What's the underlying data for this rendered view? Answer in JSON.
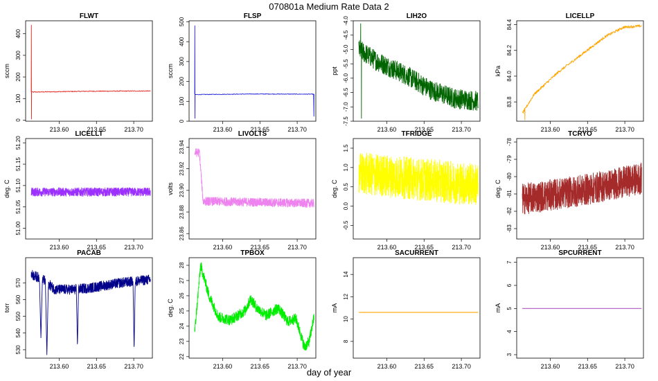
{
  "page": {
    "title": "070801a   Medium Rate Data 2",
    "xlabel": "day of year"
  },
  "chart_data": [
    {
      "type": "line",
      "title": "FLWT",
      "ylabel": "sccm",
      "color": "#e8251e",
      "xlim": [
        213.555,
        213.725
      ],
      "ylim": [
        -5,
        460
      ],
      "xticks": [
        "213.60",
        "213.65",
        "213.70"
      ],
      "xtick_values": [
        213.6,
        213.65,
        213.7
      ],
      "yticks": [
        "0",
        "100",
        "200",
        "300",
        "400"
      ],
      "ytick_values": [
        0,
        100,
        200,
        300,
        400
      ],
      "gen": {
        "x0": 213.5625,
        "x1": 213.7225,
        "n": 300,
        "base": 130,
        "noise": 2,
        "drift": [
          [
            0,
            130
          ],
          [
            0.5,
            134
          ],
          [
            1,
            135
          ]
        ],
        "spikes": [
          [
            213.5627,
            440
          ],
          [
            213.5629,
            5
          ]
        ]
      }
    },
    {
      "type": "line",
      "title": "FLSP",
      "ylabel": "sccm",
      "color": "#1c1cd8",
      "xlim": [
        213.555,
        213.725
      ],
      "ylim": [
        0,
        505
      ],
      "xticks": [
        "213.60",
        "213.65",
        "213.70"
      ],
      "xtick_values": [
        213.6,
        213.65,
        213.7
      ],
      "yticks": [
        "0",
        "100",
        "200",
        "300",
        "400",
        "500"
      ],
      "ytick_values": [
        0,
        100,
        200,
        300,
        400,
        500
      ],
      "gen": {
        "x0": 213.5625,
        "x1": 213.7225,
        "n": 300,
        "base": 135,
        "noise": 1.5,
        "drift": [
          [
            0,
            134
          ],
          [
            0.5,
            137
          ],
          [
            1,
            136
          ]
        ],
        "spikes": [
          [
            213.5627,
            480
          ],
          [
            213.5629,
            15
          ],
          [
            213.7224,
            25
          ]
        ]
      }
    },
    {
      "type": "line",
      "title": "LIH2O",
      "ylabel": "ppt",
      "color": "#006400",
      "xlim": [
        213.555,
        213.725
      ],
      "ylim": [
        -7.5,
        -4.0
      ],
      "xticks": [
        "213.60",
        "213.65",
        "213.70"
      ],
      "xtick_values": [
        213.6,
        213.65,
        213.7
      ],
      "yticks": [
        "-7.5",
        "-7.0",
        "-6.5",
        "-6.0",
        "-5.5",
        "-5.0",
        "-4.5",
        "-4.0"
      ],
      "ytick_values": [
        -7.5,
        -7.0,
        -6.5,
        -6.0,
        -5.5,
        -5.0,
        -4.5,
        -4.0
      ],
      "gen": {
        "x0": 213.5625,
        "x1": 213.7225,
        "n": 700,
        "base": -5.5,
        "noise": 0.35,
        "drift": [
          [
            0,
            -5.0
          ],
          [
            0.15,
            -5.4
          ],
          [
            0.4,
            -5.9
          ],
          [
            0.6,
            -6.4
          ],
          [
            0.8,
            -6.7
          ],
          [
            1,
            -6.8
          ]
        ],
        "spikes": [
          [
            213.565,
            -4.1
          ],
          [
            213.566,
            -7.4
          ]
        ]
      }
    },
    {
      "type": "line",
      "title": "LICELLP",
      "ylabel": "kPa",
      "color": "#ffa500",
      "xlim": [
        213.555,
        213.725
      ],
      "ylim": [
        83.65,
        84.43
      ],
      "xticks": [
        "213.60",
        "213.65",
        "213.70"
      ],
      "xtick_values": [
        213.6,
        213.65,
        213.7
      ],
      "yticks": [
        "83.8",
        "84.0",
        "84.2",
        "84.4"
      ],
      "ytick_values": [
        83.8,
        84.0,
        84.2,
        84.4
      ],
      "gen": {
        "x0": 213.5625,
        "x1": 213.7225,
        "n": 400,
        "base": 84.0,
        "noise": 0.01,
        "drift": [
          [
            0,
            83.71
          ],
          [
            0.1,
            83.86
          ],
          [
            0.3,
            84.03
          ],
          [
            0.5,
            84.17
          ],
          [
            0.7,
            84.31
          ],
          [
            0.85,
            84.38
          ],
          [
            1,
            84.39
          ]
        ],
        "spikes": [
          [
            213.566,
            83.66
          ]
        ]
      }
    },
    {
      "type": "line",
      "title": "LICELLT",
      "ylabel": "deg. C",
      "color": "#9b30ff",
      "xlim": [
        213.555,
        213.725
      ],
      "ylim": [
        50.975,
        51.21
      ],
      "xticks": [
        "213.60",
        "213.65",
        "213.70"
      ],
      "xtick_values": [
        213.6,
        213.65,
        213.7
      ],
      "yticks": [
        "51.00",
        "51.05",
        "51.10",
        "51.15",
        "51.20"
      ],
      "ytick_values": [
        51.0,
        51.05,
        51.1,
        51.15,
        51.2
      ],
      "gen": {
        "x0": 213.5625,
        "x1": 213.7225,
        "n": 900,
        "base": 51.085,
        "noise": 0.01,
        "drift": [
          [
            0,
            51.085
          ],
          [
            1,
            51.085
          ]
        ],
        "spikes": []
      }
    },
    {
      "type": "line",
      "title": "LIVOLTS",
      "ylabel": "volts",
      "color": "#ee82ee",
      "xlim": [
        213.555,
        213.725
      ],
      "ylim": [
        23.855,
        23.948
      ],
      "xticks": [
        "213.60",
        "213.65",
        "213.70"
      ],
      "xtick_values": [
        213.6,
        213.65,
        213.7
      ],
      "yticks": [
        "23.86",
        "23.88",
        "23.90",
        "23.92",
        "23.94"
      ],
      "ytick_values": [
        23.86,
        23.88,
        23.9,
        23.92,
        23.94
      ],
      "gen": {
        "x0": 213.5625,
        "x1": 213.7225,
        "n": 900,
        "base": 23.887,
        "noise": 0.004,
        "drift": [
          [
            0,
            23.935
          ],
          [
            0.04,
            23.935
          ],
          [
            0.05,
            23.92
          ],
          [
            0.07,
            23.89
          ],
          [
            1,
            23.888
          ]
        ],
        "spikes": []
      }
    },
    {
      "type": "line",
      "title": "TFRIDGE",
      "ylabel": "deg. C",
      "color": "#ffff00",
      "xlim": [
        213.555,
        213.725
      ],
      "ylim": [
        -0.85,
        1.75
      ],
      "xticks": [
        "213.60",
        "213.65",
        "213.70"
      ],
      "xtick_values": [
        213.6,
        213.65,
        213.7
      ],
      "yticks": [
        "-0.5",
        "0.0",
        "0.5",
        "1.0",
        "1.5"
      ],
      "ytick_values": [
        -0.5,
        0.0,
        0.5,
        1.0,
        1.5
      ],
      "gen": {
        "x0": 213.5625,
        "x1": 213.7225,
        "n": 1000,
        "base": 0.7,
        "noise": 0.55,
        "drift": [
          [
            0,
            0.85
          ],
          [
            1,
            0.55
          ]
        ],
        "spikes": []
      }
    },
    {
      "type": "line",
      "title": "TCRYO",
      "ylabel": "deg. C",
      "color": "#a52a2a",
      "xlim": [
        213.555,
        213.725
      ],
      "ylim": [
        -83.6,
        -77.8
      ],
      "xticks": [
        "213.60",
        "213.65",
        "213.70"
      ],
      "xtick_values": [
        213.6,
        213.65,
        213.7
      ],
      "yticks": [
        "-83",
        "-82",
        "-81",
        "-80",
        "-79",
        "-78"
      ],
      "ytick_values": [
        -83,
        -82,
        -81,
        -80,
        -79,
        -78
      ],
      "gen": {
        "x0": 213.5625,
        "x1": 213.7225,
        "n": 1000,
        "base": -81,
        "noise": 0.9,
        "drift": [
          [
            0,
            -81.3
          ],
          [
            0.5,
            -80.8
          ],
          [
            1,
            -80.1
          ]
        ],
        "spikes": []
      }
    },
    {
      "type": "line",
      "title": "PACAB",
      "ylabel": "torr",
      "color": "#00008b",
      "xlim": [
        213.555,
        213.725
      ],
      "ylim": [
        525,
        585
      ],
      "xticks": [
        "213.60",
        "213.65",
        "213.70"
      ],
      "xtick_values": [
        213.6,
        213.65,
        213.7
      ],
      "yticks": [
        "530",
        "540",
        "550",
        "560",
        "570"
      ],
      "ytick_values": [
        530,
        540,
        550,
        560,
        570
      ],
      "gen": {
        "x0": 213.5625,
        "x1": 213.7225,
        "n": 900,
        "base": 568,
        "noise": 3,
        "drift": [
          [
            0,
            575
          ],
          [
            0.1,
            572
          ],
          [
            0.2,
            566
          ],
          [
            0.35,
            566
          ],
          [
            0.5,
            567
          ],
          [
            0.75,
            570
          ],
          [
            1,
            572
          ]
        ],
        "dips": [
          [
            213.5755,
            537,
            0.002
          ],
          [
            213.5835,
            527,
            0.002
          ],
          [
            213.6245,
            532,
            0.0015
          ],
          [
            213.7005,
            530,
            0.0015
          ]
        ]
      }
    },
    {
      "type": "line",
      "title": "TPBOX",
      "ylabel": "deg. C",
      "color": "#00ee00",
      "xlim": [
        213.555,
        213.725
      ],
      "ylim": [
        21.9,
        28.5
      ],
      "xticks": [
        "213.60",
        "213.65",
        "213.70"
      ],
      "xtick_values": [
        213.6,
        213.65,
        213.7
      ],
      "yticks": [
        "22",
        "23",
        "24",
        "25",
        "26",
        "27",
        "28"
      ],
      "ytick_values": [
        22,
        23,
        24,
        25,
        26,
        27,
        28
      ],
      "gen": {
        "x0": 213.5625,
        "x1": 213.7225,
        "n": 900,
        "base": 24.8,
        "noise": 0.35,
        "drift": [
          [
            0,
            23.6
          ],
          [
            0.05,
            28.0
          ],
          [
            0.12,
            26.0
          ],
          [
            0.2,
            24.6
          ],
          [
            0.3,
            24.4
          ],
          [
            0.42,
            25.0
          ],
          [
            0.47,
            25.8
          ],
          [
            0.52,
            25.2
          ],
          [
            0.6,
            24.7
          ],
          [
            0.7,
            25.2
          ],
          [
            0.78,
            24.3
          ],
          [
            0.85,
            24.5
          ],
          [
            0.92,
            22.6
          ],
          [
            0.96,
            23.0
          ],
          [
            1,
            24.6
          ]
        ],
        "spikes": []
      }
    },
    {
      "type": "line",
      "title": "SACURRENT",
      "ylabel": "mA",
      "color": "#ffa500",
      "xlim": [
        213.555,
        213.725
      ],
      "ylim": [
        6.5,
        15.5
      ],
      "xticks": [
        "213.60",
        "213.65",
        "213.70"
      ],
      "xtick_values": [
        213.6,
        213.65,
        213.7
      ],
      "yticks": [
        "8",
        "10",
        "12",
        "14"
      ],
      "ytick_values": [
        8,
        10,
        12,
        14
      ],
      "gen": {
        "x0": 213.5625,
        "x1": 213.7225,
        "n": 2,
        "base": 10.6,
        "noise": 0,
        "drift": [
          [
            0,
            10.6
          ],
          [
            1,
            10.6
          ]
        ],
        "spikes": []
      }
    },
    {
      "type": "line",
      "title": "SPCURRENT",
      "ylabel": "mA",
      "color": "#b05cc0",
      "xlim": [
        213.555,
        213.725
      ],
      "ylim": [
        2.85,
        7.2
      ],
      "xticks": [
        "213.60",
        "213.65",
        "213.70"
      ],
      "xtick_values": [
        213.6,
        213.65,
        213.7
      ],
      "yticks": [
        "3",
        "4",
        "5",
        "6",
        "7"
      ],
      "ytick_values": [
        3,
        4,
        5,
        6,
        7
      ],
      "gen": {
        "x0": 213.5625,
        "x1": 213.7225,
        "n": 2,
        "base": 5.0,
        "noise": 0,
        "drift": [
          [
            0,
            5.0
          ],
          [
            1,
            5.0
          ]
        ],
        "spikes": []
      }
    }
  ]
}
